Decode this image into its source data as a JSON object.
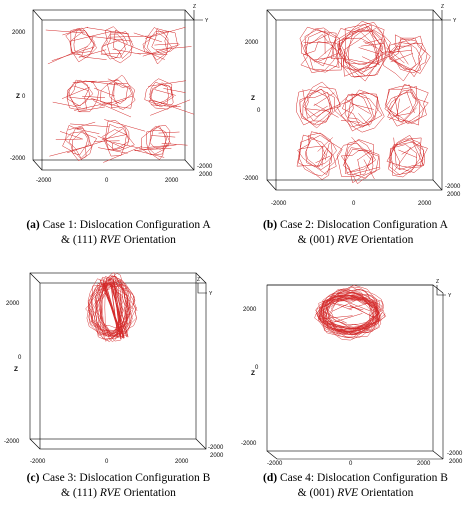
{
  "panels": [
    {
      "label": "(a)",
      "caption_line1": "Case 1: Dislocation Configuration A",
      "caption_line2_prefix": "& (111) ",
      "caption_italic": "RVE",
      "caption_line2_suffix": " Orientation",
      "z_axis_label": "Z",
      "z_ticks": [
        "2000",
        "0",
        "-2000"
      ],
      "x_ticks": [
        "-2000",
        "0",
        "2000"
      ],
      "triad_labels": [
        "Z",
        "Y"
      ],
      "corner_ticks": [
        "-2000",
        "2000"
      ]
    },
    {
      "label": "(b)",
      "caption_line1": "Case 2: Dislocation Configuration A",
      "caption_line2_prefix": "& (001) ",
      "caption_italic": "RVE",
      "caption_line2_suffix": " Orientation",
      "z_axis_label": "Z",
      "z_ticks": [
        "2000",
        "0",
        "-2000"
      ],
      "x_ticks": [
        "-2000",
        "0",
        "2000"
      ],
      "triad_labels": [
        "Z",
        "Y"
      ],
      "corner_ticks": [
        "-2000",
        "2000"
      ]
    },
    {
      "label": "(c)",
      "caption_line1": "Case 3: Dislocation Configuration B",
      "caption_line2_prefix": "& (111) ",
      "caption_italic": "RVE",
      "caption_line2_suffix": " Orientation",
      "z_axis_label": "Z",
      "z_ticks": [
        "2000",
        "0",
        "-2000"
      ],
      "x_ticks": [
        "-2000",
        "0",
        "2000"
      ],
      "triad_labels": [
        "Z",
        "Y"
      ],
      "corner_ticks": [
        "-2000",
        "2000"
      ]
    },
    {
      "label": "(d)",
      "caption_line1": "Case 4: Dislocation Configuration B",
      "caption_line2_prefix": "& (001) ",
      "caption_italic": "RVE",
      "caption_line2_suffix": " Orientation",
      "z_axis_label": "Z",
      "z_ticks": [
        "2000",
        "0",
        "-2000"
      ],
      "x_ticks": [
        "-2000",
        "0",
        "2000"
      ],
      "triad_labels": [
        "Z",
        "Y"
      ],
      "corner_ticks": [
        "-2000",
        "2000"
      ]
    }
  ],
  "colors": {
    "dislocation": "#d42a2a",
    "frame": "#000000"
  }
}
